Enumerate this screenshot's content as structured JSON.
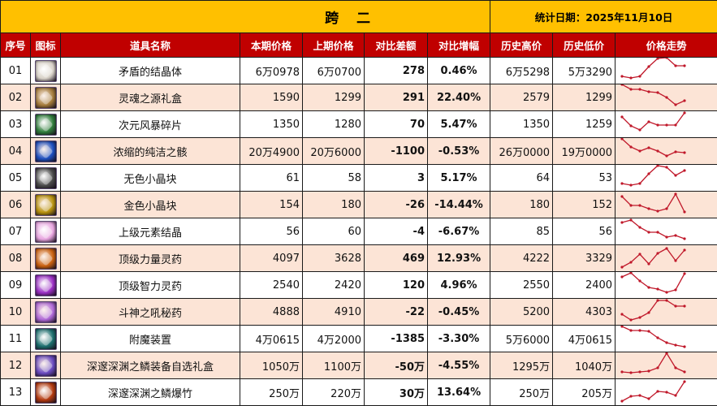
{
  "header": {
    "title": "跨 二",
    "date_label": "统计日期：2025年11月10日"
  },
  "columns": [
    "序号",
    "图标",
    "道具名称",
    "本期价格",
    "上期价格",
    "对比差额",
    "对比增幅",
    "历史高价",
    "历史低价",
    "价格走势"
  ],
  "colors": {
    "title_bg": "#ffc000",
    "header_bg": "#c00000",
    "alt_row_bg": "#fce4d6",
    "increase": "#e00000",
    "decrease": "#16a34a",
    "sparkline": "#c0182a"
  },
  "rows": [
    {
      "no": "01",
      "icon": "crystal-icon",
      "icon_color": "#d8d2c8",
      "name": "矛盾的结晶体",
      "current": "6万0978",
      "previous": "6万0700",
      "diff": "278",
      "pct": "0.46%",
      "dir": "up",
      "high": "6万5298",
      "low": "5万3290",
      "trend": [
        8,
        6,
        8,
        20,
        30,
        31,
        21,
        21
      ]
    },
    {
      "no": "02",
      "icon": "gift-box-icon",
      "icon_color": "#a37a3a",
      "name": "灵魂之源礼盒",
      "current": "1590",
      "previous": "1299",
      "diff": "291",
      "pct": "22.40%",
      "dir": "up",
      "high": "2579",
      "low": "1299",
      "trend": [
        31,
        25,
        25,
        22,
        21,
        15,
        6,
        11
      ]
    },
    {
      "no": "03",
      "icon": "shard-icon",
      "icon_color": "#2f7d3b",
      "name": "次元风暴碎片",
      "current": "1350",
      "previous": "1280",
      "diff": "70",
      "pct": "5.47%",
      "dir": "up",
      "high": "1350",
      "low": "1259",
      "trend": [
        24,
        13,
        8,
        18,
        14,
        14,
        14,
        29
      ]
    },
    {
      "no": "04",
      "icon": "orb-icon",
      "icon_color": "#1e4fbf",
      "name": "浓缩的纯洁之骸",
      "current": "20万4900",
      "previous": "20万6000",
      "diff": "-1100",
      "pct": "-0.53%",
      "dir": "down",
      "high": "26万0000",
      "low": "19万0000",
      "trend": [
        30,
        20,
        15,
        19,
        15,
        9,
        14,
        13
      ]
    },
    {
      "no": "05",
      "icon": "gray-cube-icon",
      "icon_color": "#4a4a4a",
      "name": "无色小晶块",
      "current": "61",
      "previous": "58",
      "diff": "3",
      "pct": "5.17%",
      "dir": "up",
      "high": "64",
      "low": "53",
      "trend": [
        8,
        6,
        8,
        20,
        30,
        28,
        18,
        24
      ]
    },
    {
      "no": "06",
      "icon": "gold-cube-icon",
      "icon_color": "#b8920e",
      "name": "金色小晶块",
      "current": "154",
      "previous": "180",
      "diff": "-26",
      "pct": "-14.44%",
      "dir": "down",
      "high": "180",
      "low": "152",
      "trend": [
        25,
        14,
        14,
        10,
        7,
        10,
        28,
        6
      ]
    },
    {
      "no": "07",
      "icon": "element-crystal-icon",
      "icon_color": "#e8a6e0",
      "name": "上级元素结晶",
      "current": "56",
      "previous": "60",
      "diff": "-4",
      "pct": "-6.67%",
      "dir": "down",
      "high": "85",
      "low": "56",
      "trend": [
        26,
        29,
        20,
        14,
        14,
        8,
        10,
        6
      ]
    },
    {
      "no": "08",
      "icon": "strength-potion-icon",
      "icon_color": "#c9600f",
      "name": "顶级力量灵药",
      "current": "4097",
      "previous": "3628",
      "diff": "469",
      "pct": "12.93%",
      "dir": "up",
      "high": "4222",
      "low": "3329",
      "trend": [
        4,
        10,
        20,
        8,
        21,
        27,
        12,
        25
      ]
    },
    {
      "no": "09",
      "icon": "intelligence-potion-icon",
      "icon_color": "#9a2fc4",
      "name": "顶级智力灵药",
      "current": "2540",
      "previous": "2420",
      "diff": "120",
      "pct": "4.96%",
      "dir": "up",
      "high": "2550",
      "low": "2400",
      "trend": [
        25,
        30,
        20,
        12,
        10,
        6,
        9,
        29
      ]
    },
    {
      "no": "10",
      "icon": "elixir-icon",
      "icon_color": "#b06ad8",
      "name": "斗神之吼秘药",
      "current": "4888",
      "previous": "4910",
      "diff": "-22",
      "pct": "-0.45%",
      "dir": "down",
      "high": "5200",
      "low": "4303",
      "trend": [
        12,
        5,
        8,
        14,
        29,
        29,
        22,
        22
      ]
    },
    {
      "no": "11",
      "icon": "enchant-device-icon",
      "icon_color": "#1c6e6e",
      "name": "附魔装置",
      "current": "4万0615",
      "previous": "4万2000",
      "diff": "-1385",
      "pct": "-3.30%",
      "dir": "down",
      "high": "5万6000",
      "low": "4万0615",
      "trend": [
        30,
        25,
        25,
        24,
        16,
        10,
        7,
        5
      ]
    },
    {
      "no": "12",
      "icon": "abyss-gift-box-icon",
      "icon_color": "#6a4bc0",
      "name": "深邃深渊之鳞装备自选礼盒",
      "current": "1050万",
      "previous": "1100万",
      "diff": "-50万",
      "pct": "-4.55%",
      "dir": "down",
      "high": "1295万",
      "low": "1040万",
      "trend": [
        7,
        6,
        7,
        8,
        12,
        30,
        12,
        7
      ]
    },
    {
      "no": "13",
      "icon": "firecracker-icon",
      "icon_color": "#b33a10",
      "name": "深邃深渊之鳞爆竹",
      "current": "250万",
      "previous": "220万",
      "diff": "30万",
      "pct": "13.64%",
      "dir": "up",
      "high": "250万",
      "low": "205万",
      "trend": [
        4,
        10,
        11,
        7,
        16,
        15,
        11,
        28
      ]
    }
  ]
}
